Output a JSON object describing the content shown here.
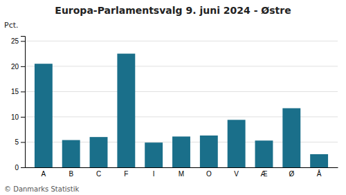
{
  "chart_data": {
    "type": "bar",
    "title": "Europa-Parlamentsvalg 9. juni 2024 - Østre",
    "categories": [
      "A",
      "B",
      "C",
      "F",
      "I",
      "M",
      "O",
      "V",
      "Æ",
      "Ø",
      "Å"
    ],
    "values": [
      20.5,
      5.4,
      6.0,
      22.5,
      4.9,
      6.1,
      6.3,
      9.4,
      5.3,
      11.7,
      2.6
    ],
    "color": "#1a6f8a",
    "ylabel": "Pct.",
    "footer": "© Danmarks Statistik",
    "ylim": [
      0,
      26
    ],
    "yticks": [
      0,
      5,
      10,
      15,
      20,
      25
    ],
    "grid": true
  }
}
